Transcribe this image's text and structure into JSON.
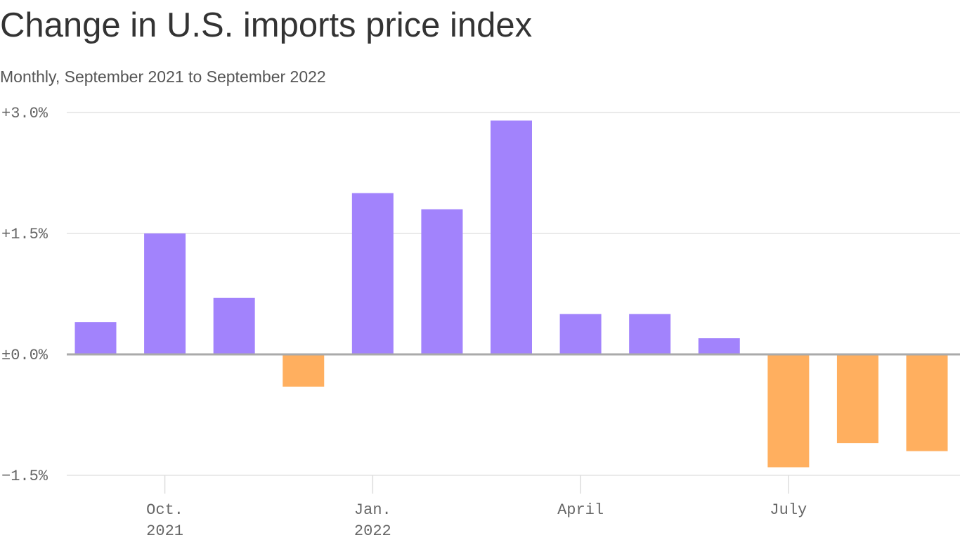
{
  "chart_data": {
    "type": "bar",
    "title": "Change in U.S. imports price index",
    "subtitle": "Monthly, September 2021 to September 2022",
    "categories": [
      null,
      "Oct. 2021",
      null,
      null,
      "Jan. 2022",
      null,
      null,
      "April",
      null,
      null,
      "July",
      null,
      null
    ],
    "values": [
      0.4,
      1.5,
      0.7,
      -0.4,
      2.0,
      1.8,
      2.9,
      0.5,
      0.5,
      0.2,
      -1.4,
      -1.1,
      -1.2
    ],
    "positive_color": "#a283fc",
    "negative_color": "#ffaf5f",
    "ylim": [
      -1.5,
      3.0
    ],
    "yticks": [
      {
        "value": 3.0,
        "label": "+3.0%"
      },
      {
        "value": 1.5,
        "label": "+1.5%"
      },
      {
        "value": 0,
        "label": "±0.0%"
      },
      {
        "value": -1.5,
        "label": "−1.5%"
      }
    ],
    "grid": true
  }
}
